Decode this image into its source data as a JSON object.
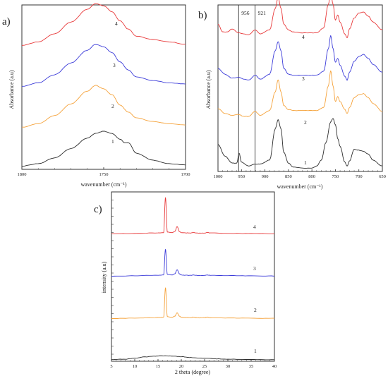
{
  "colors": {
    "1": "#2b2b2b",
    "2": "#f5a23a",
    "3": "#3b3bd9",
    "4": "#e8393a",
    "axis": "#333333"
  },
  "chart_data": [
    {
      "panel": "a)",
      "type": "line",
      "xlabel": "wavenumber (cm⁻¹)",
      "ylabel": "Absorbance (a.u)",
      "xlim": [
        1800,
        1700
      ],
      "x_reversed": true,
      "xticks": [
        "1800",
        "1750",
        "1700"
      ],
      "grid": false,
      "series": [
        {
          "name": "1",
          "x": [
            1800,
            1790,
            1780,
            1770,
            1760,
            1755,
            1750,
            1745,
            1740,
            1737,
            1735,
            1730,
            1720,
            1710,
            1700
          ],
          "y": [
            0.05,
            0.15,
            0.4,
            0.8,
            1.25,
            1.45,
            1.55,
            1.45,
            1.2,
            1.05,
            1.05,
            0.6,
            0.3,
            0.15,
            0.1
          ]
        },
        {
          "name": "2",
          "x": [
            1800,
            1790,
            1780,
            1770,
            1760,
            1755,
            1750,
            1745,
            1740,
            1735,
            1730,
            1720,
            1710,
            1700
          ],
          "y": [
            0.05,
            0.2,
            0.55,
            1.05,
            1.6,
            1.85,
            1.7,
            1.45,
            1.0,
            0.7,
            0.45,
            0.3,
            0.2,
            0.15
          ]
        },
        {
          "name": "3",
          "x": [
            1800,
            1790,
            1780,
            1770,
            1760,
            1755,
            1750,
            1745,
            1740,
            1735,
            1730,
            1720,
            1710,
            1700
          ],
          "y": [
            0.05,
            0.2,
            0.55,
            1.05,
            1.6,
            1.85,
            1.75,
            1.5,
            1.1,
            0.75,
            0.45,
            0.3,
            0.2,
            0.15
          ]
        },
        {
          "name": "4",
          "x": [
            1800,
            1790,
            1780,
            1770,
            1760,
            1755,
            1750,
            1745,
            1740,
            1735,
            1730,
            1720,
            1710,
            1700
          ],
          "y": [
            0.05,
            0.2,
            0.55,
            1.05,
            1.6,
            1.85,
            1.75,
            1.5,
            1.1,
            0.75,
            0.45,
            0.3,
            0.2,
            0.1
          ]
        }
      ],
      "curve_labels": [
        "1",
        "2",
        "3",
        "4"
      ]
    },
    {
      "panel": "b)",
      "type": "line",
      "xlabel": "wavenumber (cm⁻¹)",
      "ylabel": "Absorbance (a.u)",
      "xlim": [
        1000,
        650
      ],
      "x_reversed": true,
      "xticks": [
        "1000",
        "950",
        "900",
        "850",
        "800",
        "750",
        "700",
        "650"
      ],
      "annotations": [
        {
          "x": 956,
          "label": "956"
        },
        {
          "x": 921,
          "label": "921"
        }
      ],
      "grid": false,
      "series": [
        {
          "name": "1",
          "x": [
            1000,
            985,
            970,
            960,
            955,
            950,
            935,
            921,
            910,
            890,
            878,
            872,
            866,
            860,
            850,
            840,
            820,
            800,
            790,
            780,
            770,
            760,
            755,
            750,
            745,
            740,
            730,
            725,
            720,
            710,
            700,
            690,
            680,
            670,
            650
          ],
          "y": [
            1.3,
            0.7,
            0.35,
            0.35,
            0.85,
            0.4,
            0.2,
            0.3,
            0.3,
            0.5,
            2.1,
            2.55,
            2.1,
            0.9,
            0.35,
            0.15,
            0.1,
            0.1,
            0.2,
            0.5,
            1.4,
            2.45,
            2.6,
            2.3,
            1.6,
            1.2,
            0.4,
            0.2,
            0.45,
            1.05,
            1.0,
            0.95,
            0.8,
            0.5,
            0.2
          ]
        },
        {
          "name": "2",
          "x": [
            1000,
            985,
            970,
            956,
            945,
            935,
            921,
            910,
            890,
            878,
            872,
            866,
            860,
            850,
            840,
            820,
            800,
            790,
            775,
            765,
            760,
            755,
            750,
            745,
            740,
            730,
            725,
            720,
            710,
            700,
            690,
            680,
            670,
            650
          ],
          "y": [
            0.65,
            0.4,
            0.3,
            0.35,
            0.25,
            0.25,
            0.5,
            0.3,
            0.55,
            1.5,
            2.1,
            1.5,
            0.8,
            0.6,
            0.55,
            0.55,
            0.55,
            0.55,
            0.7,
            1.8,
            2.55,
            1.8,
            1.0,
            1.25,
            1.0,
            0.6,
            0.4,
            0.7,
            1.2,
            1.35,
            1.4,
            1.2,
            0.9,
            0.5
          ]
        },
        {
          "name": "3",
          "x": [
            1000,
            985,
            970,
            956,
            945,
            935,
            921,
            910,
            890,
            878,
            872,
            866,
            860,
            850,
            840,
            820,
            800,
            790,
            775,
            765,
            760,
            755,
            750,
            745,
            740,
            730,
            725,
            720,
            710,
            700,
            690,
            680,
            670,
            650
          ],
          "y": [
            0.9,
            0.6,
            0.4,
            0.45,
            0.35,
            0.3,
            0.55,
            0.35,
            0.6,
            1.8,
            2.25,
            1.8,
            0.9,
            0.6,
            0.55,
            0.55,
            0.55,
            0.55,
            0.75,
            1.9,
            2.55,
            1.9,
            1.2,
            1.4,
            1.05,
            0.5,
            0.3,
            0.7,
            1.25,
            1.5,
            1.6,
            1.4,
            1.1,
            0.7
          ]
        },
        {
          "name": "4",
          "x": [
            1000,
            990,
            980,
            970,
            956,
            945,
            935,
            921,
            910,
            890,
            878,
            872,
            866,
            860,
            850,
            840,
            820,
            800,
            790,
            775,
            765,
            760,
            755,
            750,
            745,
            740,
            730,
            725,
            720,
            710,
            700,
            690,
            680,
            670,
            650
          ],
          "y": [
            1.0,
            0.6,
            0.6,
            0.75,
            0.55,
            0.5,
            0.45,
            0.7,
            0.5,
            0.7,
            1.8,
            2.35,
            1.8,
            1.0,
            0.7,
            0.6,
            0.55,
            0.55,
            0.55,
            0.8,
            2.0,
            2.6,
            2.0,
            1.2,
            1.45,
            1.1,
            0.5,
            0.3,
            0.75,
            1.3,
            1.55,
            1.6,
            1.4,
            1.1,
            0.7
          ]
        }
      ],
      "curve_labels": [
        "1",
        "2",
        "3",
        "4"
      ]
    },
    {
      "panel": "c)",
      "type": "line",
      "xlabel": "2 theta (degree)",
      "ylabel": "intensity (a.u)",
      "xlim": [
        5,
        40
      ],
      "xticks": [
        "5",
        "10",
        "15",
        "20",
        "25",
        "30",
        "35",
        "40"
      ],
      "grid": false,
      "series": [
        {
          "name": "1",
          "x": [
            5,
            8,
            10,
            12,
            14,
            16,
            18,
            20,
            22,
            25,
            28,
            30,
            35,
            40
          ],
          "y": [
            0.1,
            0.25,
            0.6,
            1.05,
            1.35,
            1.5,
            1.4,
            1.15,
            0.85,
            0.55,
            0.35,
            0.25,
            0.1,
            0.05
          ]
        },
        {
          "name": "2",
          "x": [
            5,
            10,
            15,
            16.2,
            16.6,
            17,
            18,
            18.6,
            19.1,
            19.6,
            20,
            21,
            22,
            22.6,
            23.2,
            24,
            25,
            25.6,
            26.2,
            30,
            35,
            40
          ],
          "y": [
            0.15,
            0.3,
            0.5,
            0.6,
            11.5,
            0.8,
            0.6,
            1.0,
            2.2,
            1.0,
            0.6,
            0.5,
            0.45,
            0.7,
            0.45,
            0.4,
            0.45,
            0.65,
            0.45,
            0.35,
            0.25,
            0.2
          ]
        },
        {
          "name": "3",
          "x": [
            5,
            10,
            15,
            16.2,
            16.6,
            17,
            18,
            18.6,
            19.1,
            19.6,
            20,
            21,
            22,
            22.6,
            23.2,
            24,
            25,
            25.6,
            26.2,
            30,
            35,
            40
          ],
          "y": [
            0.15,
            0.3,
            0.5,
            0.6,
            10.0,
            0.8,
            0.6,
            1.0,
            2.5,
            1.0,
            0.6,
            0.5,
            0.45,
            0.6,
            0.45,
            0.4,
            0.45,
            0.55,
            0.45,
            0.35,
            0.25,
            0.2
          ]
        },
        {
          "name": "4",
          "x": [
            5,
            10,
            15,
            16.2,
            16.6,
            17,
            18,
            18.6,
            19.1,
            19.6,
            20,
            21,
            22,
            22.6,
            23.2,
            24,
            25,
            25.6,
            26.2,
            30,
            35,
            40
          ],
          "y": [
            0.15,
            0.3,
            0.5,
            0.6,
            13.5,
            0.8,
            0.6,
            1.0,
            2.8,
            1.0,
            0.6,
            0.5,
            0.45,
            0.7,
            0.45,
            0.4,
            0.45,
            0.65,
            0.45,
            0.35,
            0.25,
            0.2
          ]
        }
      ],
      "curve_labels": [
        "1",
        "2",
        "3",
        "4"
      ]
    }
  ]
}
